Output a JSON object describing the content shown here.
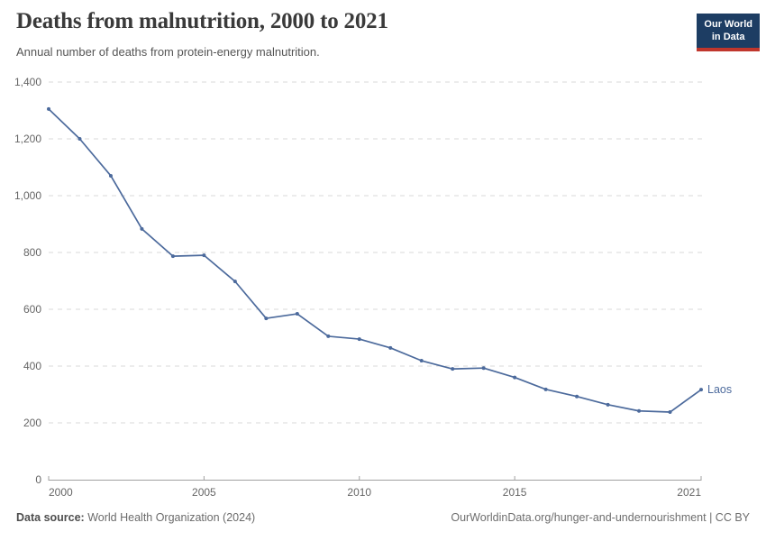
{
  "header": {
    "title": "Deaths from malnutrition, 2000 to 2021",
    "subtitle": "Annual number of deaths from protein-energy malnutrition.",
    "logo": {
      "line1": "Our World",
      "line2": "in Data",
      "bg_color": "#1d3d63",
      "bar_color": "#c0362c"
    }
  },
  "chart_data": {
    "type": "line",
    "title": "Deaths from malnutrition, 2000 to 2021",
    "xlabel": "",
    "ylabel": "",
    "xlim": [
      2000,
      2021
    ],
    "ylim": [
      0,
      1400
    ],
    "x_ticks": [
      2000,
      2005,
      2010,
      2015,
      2021
    ],
    "y_ticks": [
      0,
      200,
      400,
      600,
      800,
      1000,
      1200,
      1400
    ],
    "grid": "horizontal-dashed",
    "legend_position": "end-of-line-label",
    "grid_color": "#dadada",
    "axis_color": "#a1a1a1",
    "tick_text_color": "#666666",
    "series": [
      {
        "name": "Laos",
        "color": "#4c6a9c",
        "x": [
          2000,
          2001,
          2002,
          2003,
          2004,
          2005,
          2006,
          2007,
          2008,
          2009,
          2010,
          2011,
          2012,
          2013,
          2014,
          2015,
          2016,
          2017,
          2018,
          2019,
          2020,
          2021
        ],
        "values": [
          1305,
          1200,
          1070,
          883,
          787,
          790,
          698,
          568,
          584,
          505,
          495,
          464,
          419,
          390,
          393,
          360,
          318,
          293,
          264,
          242,
          238,
          317
        ]
      }
    ]
  },
  "footer": {
    "source_label": "Data source:",
    "source_value": "World Health Organization (2024)",
    "credit": "OurWorldinData.org/hunger-and-undernourishment | CC BY"
  }
}
